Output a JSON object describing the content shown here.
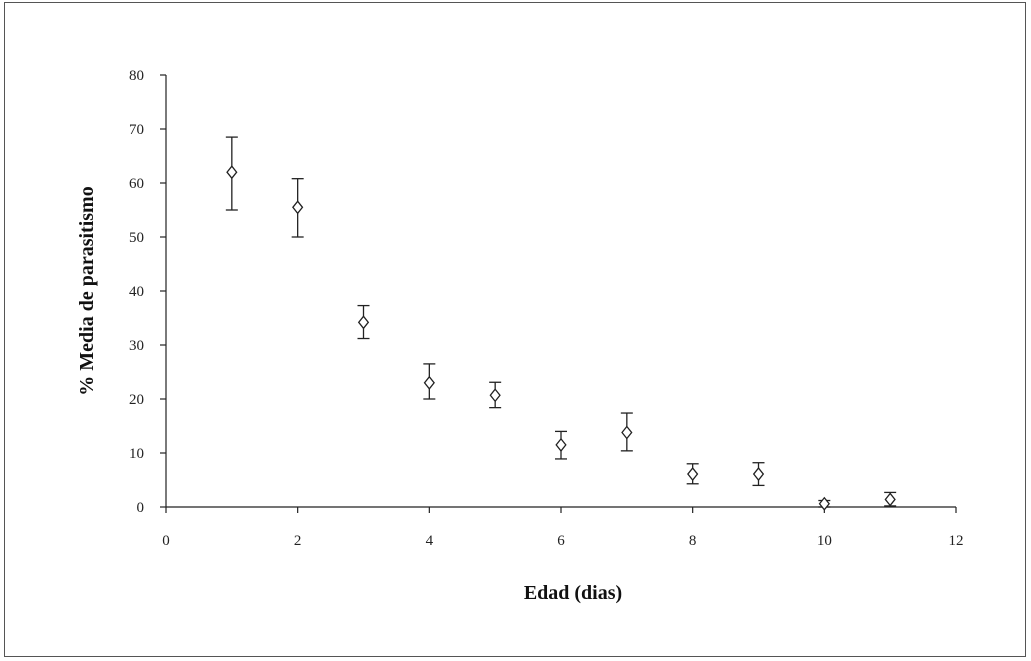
{
  "chart_data": {
    "type": "scatter",
    "xlabel": "Edad (dias)",
    "ylabel": "% Media de parasitismo",
    "xlim": [
      0,
      12
    ],
    "ylim": [
      0,
      80
    ],
    "xticks": [
      0,
      2,
      4,
      6,
      8,
      10,
      12
    ],
    "yticks": [
      0,
      10,
      20,
      30,
      40,
      50,
      60,
      70,
      80
    ],
    "grid": false,
    "legend": "none",
    "marker": "open-diamond",
    "error_bars": true,
    "series": [
      {
        "points": [
          {
            "x": 1,
            "y": 62,
            "err_low": 55,
            "err_high": 68.5
          },
          {
            "x": 2,
            "y": 55.5,
            "err_low": 50,
            "err_high": 60.8
          },
          {
            "x": 3,
            "y": 34.2,
            "err_low": 31.2,
            "err_high": 37.3
          },
          {
            "x": 4,
            "y": 23,
            "err_low": 20,
            "err_high": 26.5
          },
          {
            "x": 5,
            "y": 20.7,
            "err_low": 18.4,
            "err_high": 23.1
          },
          {
            "x": 6,
            "y": 11.5,
            "err_low": 8.9,
            "err_high": 14
          },
          {
            "x": 7,
            "y": 13.8,
            "err_low": 10.4,
            "err_high": 17.4
          },
          {
            "x": 8,
            "y": 6.1,
            "err_low": 4.3,
            "err_high": 8
          },
          {
            "x": 9,
            "y": 6.1,
            "err_low": 4,
            "err_high": 8.2
          },
          {
            "x": 10,
            "y": 0.6,
            "err_low": 0,
            "err_high": 1.2
          },
          {
            "x": 11,
            "y": 1.4,
            "err_low": 0.2,
            "err_high": 2.7
          }
        ]
      }
    ]
  }
}
